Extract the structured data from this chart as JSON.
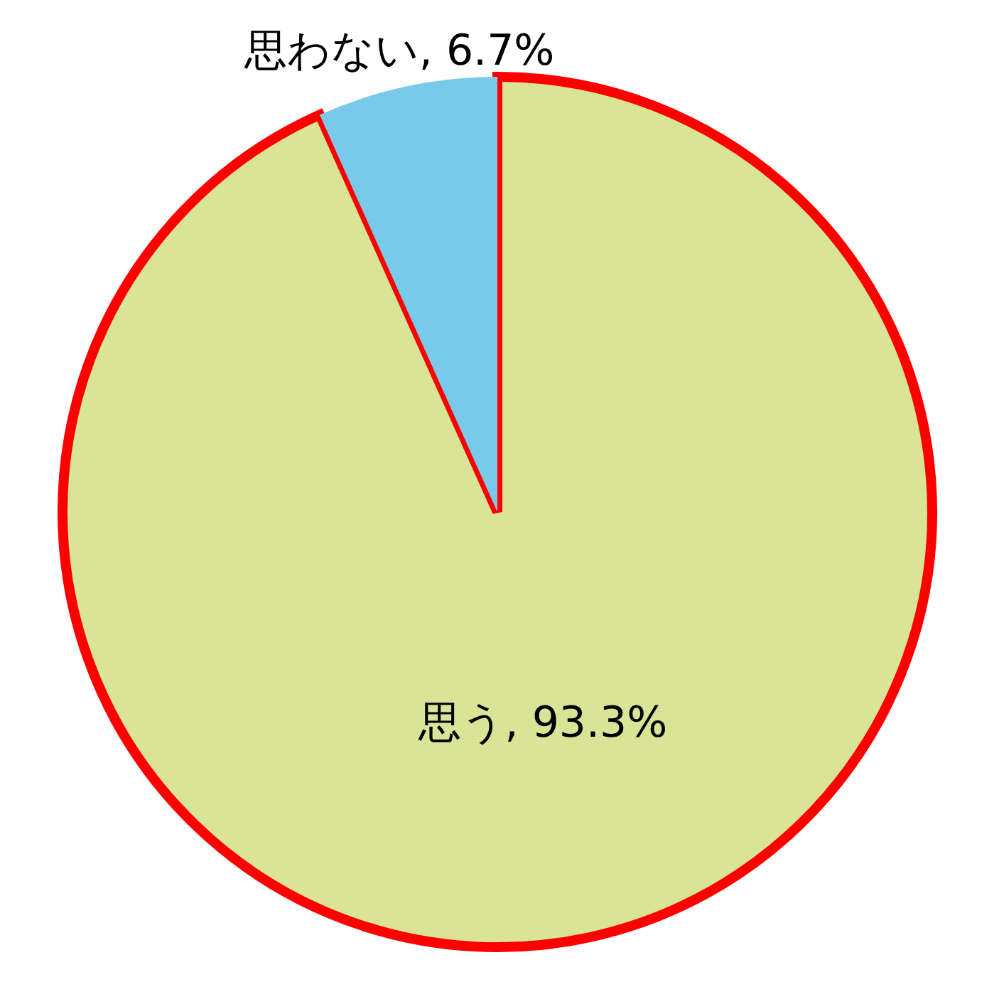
{
  "chart_data": {
    "type": "pie",
    "categories": [
      "思う",
      "思わない"
    ],
    "values": [
      93.3,
      6.7
    ],
    "value_labels": [
      "93.3%",
      "6.7%"
    ],
    "colors": [
      "#d9e496",
      "#79c9ea"
    ]
  }
}
